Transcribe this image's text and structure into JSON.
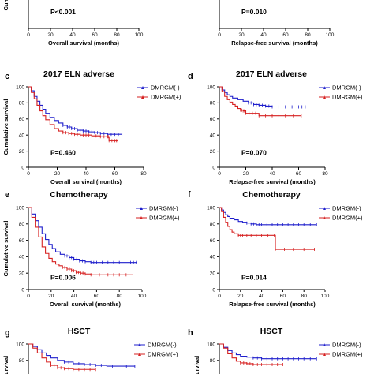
{
  "colors": {
    "neg": "#1f1fcc",
    "pos": "#d62020",
    "axis": "#000000"
  },
  "chart_data": [
    {
      "panel": "",
      "type": "line",
      "title": "",
      "xlabel": "Overall survival (months)",
      "ylabel": "Cumulative survival",
      "xlim": [
        0,
        100
      ],
      "ylim": [
        0,
        100
      ],
      "xticks": [
        "0",
        "20",
        "40",
        "60",
        "80",
        "100"
      ],
      "yticks": [
        "40"
      ],
      "pvalue": "P<0.001",
      "series": []
    },
    {
      "panel": "",
      "type": "line",
      "title": "",
      "xlabel": "Relapse-free survival (months)",
      "ylabel": "",
      "xlim": [
        0,
        100
      ],
      "ylim": [
        0,
        100
      ],
      "xticks": [
        "0",
        "20",
        "40",
        "60",
        "80",
        "100"
      ],
      "yticks": [
        "40"
      ],
      "pvalue": "P=0.010",
      "series": []
    },
    {
      "panel": "c",
      "type": "line",
      "title": "2017 ELN adverse",
      "xlabel": "Overall survival (months)",
      "ylabel": "Cumulative survival",
      "xlim": [
        0,
        80
      ],
      "ylim": [
        0,
        100
      ],
      "xticks": [
        "0",
        "20",
        "40",
        "60",
        "80"
      ],
      "yticks": [
        "0",
        "20",
        "40",
        "60",
        "80",
        "100"
      ],
      "pvalue": "P=0.460",
      "series": [
        {
          "name": "DMRGM(-)",
          "color_key": "neg",
          "x": [
            0,
            2,
            4,
            6,
            8,
            10,
            12,
            15,
            18,
            21,
            24,
            27,
            30,
            34,
            38,
            42,
            46,
            50,
            55,
            60,
            65
          ],
          "y": [
            100,
            95,
            88,
            82,
            77,
            72,
            67,
            62,
            58,
            55,
            52,
            50,
            48,
            46,
            45,
            44,
            43,
            42,
            41,
            41,
            41
          ]
        },
        {
          "name": "DMRGM(+)",
          "color_key": "pos",
          "x": [
            0,
            2,
            4,
            6,
            8,
            10,
            12,
            15,
            18,
            21,
            24,
            28,
            32,
            36,
            40,
            44,
            50,
            55,
            56,
            60,
            62
          ],
          "y": [
            100,
            93,
            85,
            77,
            70,
            64,
            59,
            53,
            48,
            45,
            43,
            42,
            41,
            40,
            40,
            39,
            38,
            38,
            33,
            33,
            33
          ]
        }
      ]
    },
    {
      "panel": "d",
      "type": "line",
      "title": "2017 ELN adverse",
      "xlabel": "Relapse-free survival (months)",
      "ylabel": "",
      "xlim": [
        0,
        80
      ],
      "ylim": [
        0,
        100
      ],
      "xticks": [
        "0",
        "20",
        "40",
        "60",
        "80"
      ],
      "yticks": [
        "0",
        "20",
        "40",
        "60",
        "80",
        "100"
      ],
      "pvalue": "P=0.070",
      "series": [
        {
          "name": "DMRGM(-)",
          "color_key": "neg",
          "x": [
            0,
            2,
            4,
            6,
            8,
            10,
            14,
            18,
            22,
            26,
            30,
            35,
            40,
            50,
            60,
            65
          ],
          "y": [
            100,
            96,
            93,
            90,
            88,
            86,
            84,
            82,
            80,
            78,
            77,
            76,
            75,
            75,
            75,
            75
          ]
        },
        {
          "name": "DMRGM(+)",
          "color_key": "pos",
          "x": [
            0,
            2,
            4,
            6,
            8,
            10,
            12,
            14,
            16,
            18,
            20,
            25,
            30,
            40,
            50,
            62
          ],
          "y": [
            100,
            94,
            88,
            84,
            81,
            78,
            76,
            73,
            71,
            70,
            67,
            67,
            64,
            64,
            64,
            64
          ]
        }
      ]
    },
    {
      "panel": "e",
      "type": "line",
      "title": "Chemotherapy",
      "xlabel": "Overall survival (months)",
      "ylabel": "Cumulative survival",
      "xlim": [
        0,
        100
      ],
      "ylim": [
        0,
        100
      ],
      "xticks": [
        "0",
        "20",
        "40",
        "60",
        "80",
        "100"
      ],
      "yticks": [
        "0",
        "20",
        "40",
        "60",
        "80",
        "100"
      ],
      "pvalue": "P=0.006",
      "series": [
        {
          "name": "DMRGM(-)",
          "color_key": "neg",
          "x": [
            0,
            3,
            6,
            9,
            12,
            15,
            18,
            21,
            24,
            28,
            32,
            36,
            40,
            45,
            50,
            55,
            60,
            70,
            80,
            90,
            95
          ],
          "y": [
            100,
            92,
            84,
            76,
            68,
            61,
            55,
            50,
            46,
            43,
            41,
            39,
            37,
            35,
            34,
            33,
            33,
            33,
            33,
            33,
            33
          ]
        },
        {
          "name": "DMRGM(+)",
          "color_key": "pos",
          "x": [
            0,
            3,
            6,
            9,
            12,
            15,
            18,
            21,
            24,
            27,
            30,
            34,
            38,
            42,
            46,
            50,
            55,
            70,
            80,
            92
          ],
          "y": [
            100,
            88,
            76,
            64,
            52,
            44,
            38,
            34,
            31,
            29,
            27,
            25,
            23,
            21,
            20,
            19,
            18,
            18,
            18,
            18
          ]
        }
      ]
    },
    {
      "panel": "f",
      "type": "line",
      "title": "Chemotherapy",
      "xlabel": "Relapse-free survival (months)",
      "ylabel": "",
      "xlim": [
        0,
        100
      ],
      "ylim": [
        0,
        100
      ],
      "xticks": [
        "0",
        "20",
        "40",
        "60",
        "80",
        "100"
      ],
      "yticks": [
        "0",
        "20",
        "40",
        "60",
        "80",
        "100"
      ],
      "pvalue": "P=0.014",
      "series": [
        {
          "name": "DMRGM(-)",
          "color_key": "neg",
          "x": [
            0,
            2,
            4,
            6,
            8,
            10,
            14,
            18,
            22,
            26,
            30,
            35,
            40,
            50,
            60,
            70,
            80,
            92
          ],
          "y": [
            100,
            97,
            94,
            91,
            89,
            87,
            85,
            83,
            82,
            81,
            80,
            79,
            79,
            79,
            79,
            79,
            79,
            79
          ]
        },
        {
          "name": "DMRGM(+)",
          "color_key": "pos",
          "x": [
            0,
            2,
            4,
            6,
            8,
            10,
            12,
            14,
            18,
            22,
            30,
            40,
            52,
            53,
            70,
            90
          ],
          "y": [
            100,
            95,
            88,
            82,
            77,
            73,
            70,
            68,
            66,
            66,
            66,
            66,
            66,
            49,
            49,
            49
          ]
        }
      ]
    },
    {
      "panel": "g",
      "type": "line",
      "title": "HSCT",
      "xlabel": "",
      "ylabel": "survival",
      "xlim": [
        0,
        100
      ],
      "ylim": [
        0,
        100
      ],
      "xticks": [],
      "yticks": [
        "80",
        "100"
      ],
      "pvalue": "",
      "series": [
        {
          "name": "DMRGM(-)",
          "color_key": "neg",
          "x": [
            0,
            4,
            8,
            12,
            16,
            20,
            26,
            32,
            40,
            50,
            60,
            70,
            80,
            95
          ],
          "y": [
            100,
            97,
            93,
            89,
            86,
            83,
            80,
            78,
            76,
            75,
            74,
            73,
            73,
            73
          ]
        },
        {
          "name": "DMRGM(+)",
          "color_key": "pos",
          "x": [
            0,
            4,
            8,
            12,
            16,
            20,
            26,
            32,
            40,
            50,
            60
          ],
          "y": [
            100,
            95,
            89,
            83,
            78,
            74,
            71,
            70,
            69,
            69,
            69
          ]
        }
      ]
    },
    {
      "panel": "h",
      "type": "line",
      "title": "HSCT",
      "xlabel": "",
      "ylabel": "survival",
      "xlim": [
        0,
        100
      ],
      "ylim": [
        0,
        100
      ],
      "xticks": [],
      "yticks": [
        "80",
        "100"
      ],
      "pvalue": "",
      "series": [
        {
          "name": "DMRGM(-)",
          "color_key": "neg",
          "x": [
            0,
            4,
            8,
            12,
            16,
            20,
            26,
            32,
            40,
            50,
            60,
            70,
            80,
            92
          ],
          "y": [
            100,
            96,
            92,
            89,
            87,
            85,
            84,
            83,
            82,
            82,
            82,
            82,
            82,
            82
          ]
        },
        {
          "name": "DMRGM(+)",
          "color_key": "pos",
          "x": [
            0,
            4,
            8,
            12,
            16,
            20,
            26,
            32,
            40,
            50,
            60
          ],
          "y": [
            100,
            95,
            88,
            83,
            79,
            77,
            76,
            75,
            75,
            75,
            75
          ]
        }
      ]
    }
  ]
}
